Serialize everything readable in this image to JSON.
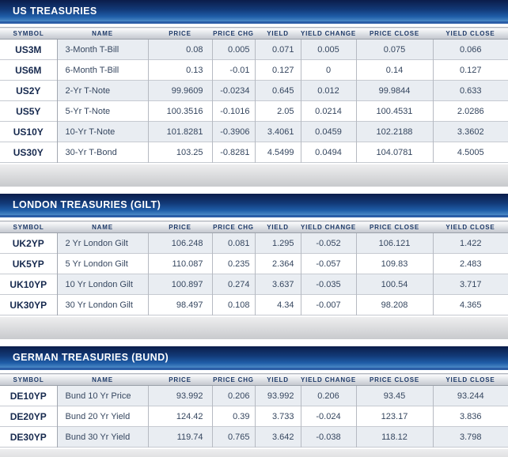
{
  "columns": [
    "SYMBOL",
    "NAME",
    "PRICE",
    "PRICE CHG",
    "YIELD",
    "YIELD CHANGE",
    "PRICE CLOSE",
    "YIELD CLOSE"
  ],
  "sections": [
    {
      "title": "US TREASURIES",
      "rows": [
        [
          "US3M",
          "3-Month T-Bill",
          "0.08",
          "0.005",
          "0.071",
          "0.005",
          "0.075",
          "0.066"
        ],
        [
          "US6M",
          "6-Month T-Bill",
          "0.13",
          "-0.01",
          "0.127",
          "0",
          "0.14",
          "0.127"
        ],
        [
          "US2Y",
          "2-Yr T-Note",
          "99.9609",
          "-0.0234",
          "0.645",
          "0.012",
          "99.9844",
          "0.633"
        ],
        [
          "US5Y",
          "5-Yr T-Note",
          "100.3516",
          "-0.1016",
          "2.05",
          "0.0214",
          "100.4531",
          "2.0286"
        ],
        [
          "US10Y",
          "10-Yr T-Note",
          "101.8281",
          "-0.3906",
          "3.4061",
          "0.0459",
          "102.2188",
          "3.3602"
        ],
        [
          "US30Y",
          "30-Yr T-Bond",
          "103.25",
          "-0.8281",
          "4.5499",
          "0.0494",
          "104.0781",
          "4.5005"
        ]
      ]
    },
    {
      "title": "LONDON TREASURIES (GILT)",
      "rows": [
        [
          "UK2YP",
          "2 Yr London Gilt",
          "106.248",
          "0.081",
          "1.295",
          "-0.052",
          "106.121",
          "1.422"
        ],
        [
          "UK5YP",
          "5 Yr London Gilt",
          "110.087",
          "0.235",
          "2.364",
          "-0.057",
          "109.83",
          "2.483"
        ],
        [
          "UK10YP",
          "10 Yr London Gilt",
          "100.897",
          "0.274",
          "3.637",
          "-0.035",
          "100.54",
          "3.717"
        ],
        [
          "UK30YP",
          "30 Yr London Gilt",
          "98.497",
          "0.108",
          "4.34",
          "-0.007",
          "98.208",
          "4.365"
        ]
      ]
    },
    {
      "title": "GERMAN TREASURIES (BUND)",
      "rows": [
        [
          "DE10YP",
          "Bund 10 Yr Price",
          "93.992",
          "0.206",
          "93.992",
          "0.206",
          "93.45",
          "93.244"
        ],
        [
          "DE20YP",
          "Bund 20 Yr Yield",
          "124.42",
          "0.39",
          "3.733",
          "-0.024",
          "123.17",
          "3.836"
        ],
        [
          "DE30YP",
          "Bund 30 Yr Yield",
          "119.74",
          "0.765",
          "3.642",
          "-0.038",
          "118.12",
          "3.798"
        ]
      ]
    }
  ],
  "colors": {
    "hdr_top": "#0b1d4a",
    "hdr_mid1": "#123a78",
    "hdr_mid2": "#1f5da8",
    "hdr_bottom": "#4b8ac6",
    "hdr_strip": "#2b5ea7",
    "title_text": "#ffffff",
    "colhead_text": "#1e3a68",
    "row_tint": "#e9edf2",
    "cell_text": "#35465f",
    "symbol_text": "#16294e",
    "grid_line": "#b6bac2",
    "row_line": "#c6cad1"
  }
}
